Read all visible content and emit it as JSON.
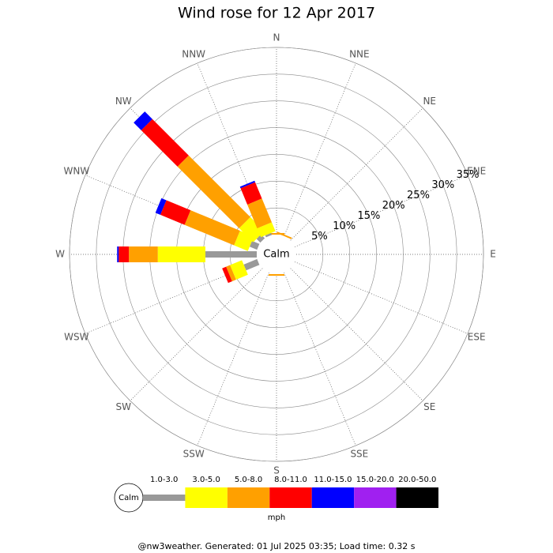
{
  "chart_data": {
    "type": "windrose",
    "title": "Wind rose for 12 Apr 2017",
    "categories": [
      "N",
      "NNE",
      "NE",
      "ENE",
      "E",
      "ESE",
      "SE",
      "SSE",
      "S",
      "SSW",
      "SW",
      "WSW",
      "W",
      "WNW",
      "NW",
      "NNW"
    ],
    "series": [
      {
        "name": "1.0-3.0",
        "color": "#999999",
        "values": [
          0,
          0,
          0,
          0,
          0,
          0,
          0,
          0,
          0,
          0,
          0,
          2.7,
          9.6,
          1.5,
          1.0,
          0.4
        ]
      },
      {
        "name": "3.0-5.0",
        "color": "#ffff00",
        "values": [
          0,
          0,
          0,
          0,
          0,
          0,
          0,
          0,
          0,
          0,
          0,
          2.4,
          8.9,
          2.8,
          3.7,
          1.8
        ]
      },
      {
        "name": "5.0-8.0",
        "color": "#ffa000",
        "values": [
          0.3,
          0.3,
          0,
          0,
          0,
          0,
          0,
          0,
          0.3,
          0,
          0,
          0.8,
          5.4,
          10.0,
          16.3,
          4.8
        ]
      },
      {
        "name": "8.0-11.0",
        "color": "#ff0000",
        "values": [
          0,
          0,
          0,
          0,
          0,
          0,
          0,
          0,
          0,
          0,
          0,
          0.8,
          1.9,
          4.9,
          9.6,
          3.3
        ]
      },
      {
        "name": "11.0-15.0",
        "color": "#0000ff",
        "values": [
          0,
          0,
          0,
          0,
          0,
          0,
          0,
          0,
          0,
          0,
          0,
          0,
          0.3,
          1.0,
          2.0,
          0.3
        ]
      },
      {
        "name": "15.0-20.0",
        "color": "#a020f0",
        "values": [
          0,
          0,
          0,
          0,
          0,
          0,
          0,
          0,
          0,
          0,
          0,
          0,
          0,
          0,
          0,
          0
        ]
      },
      {
        "name": "20.0-50.0",
        "color": "#000000",
        "values": [
          0,
          0,
          0,
          0,
          0,
          0,
          0,
          0,
          0,
          0,
          0,
          0,
          0,
          0,
          0,
          0
        ]
      }
    ],
    "ylim": [
      0,
      35
    ],
    "yticks": [
      {
        "value": 5,
        "label": "5%"
      },
      {
        "value": 10,
        "label": "10%"
      },
      {
        "value": 15,
        "label": "15%"
      },
      {
        "value": 20,
        "label": "20%"
      },
      {
        "value": 25,
        "label": "25%"
      },
      {
        "value": 30,
        "label": "30%"
      },
      {
        "value": 35,
        "label": "35%"
      }
    ],
    "calm_label": "Calm",
    "unit": "mph",
    "footer": "@nw3weather. Generated: 01 Jul 2025 03:35; Load time: 0.32 s"
  }
}
